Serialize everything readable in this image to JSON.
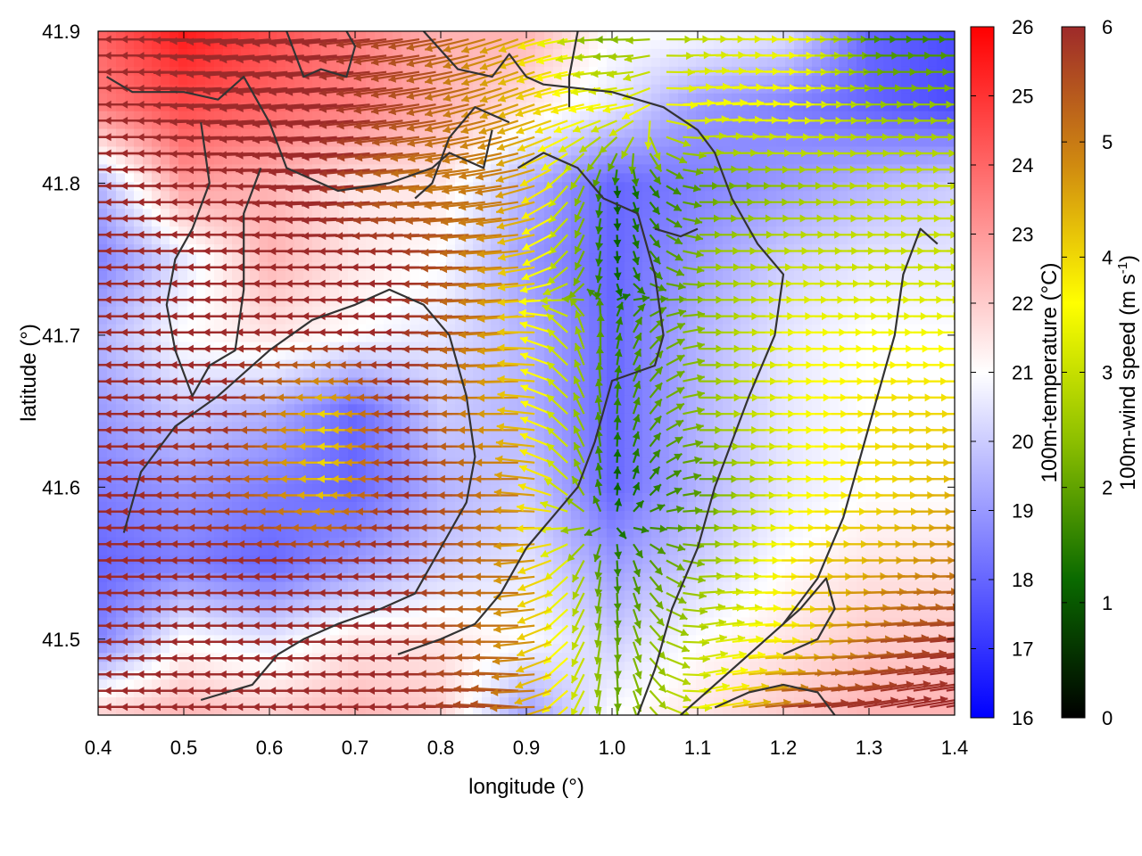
{
  "chart_data": {
    "type": "heatmap",
    "title": "",
    "xlabel": "longitude (°)",
    "ylabel": "latitude (°)",
    "xlim": [
      0.4,
      1.4
    ],
    "ylim": [
      41.45,
      41.9
    ],
    "x_ticks": [
      "0.4",
      "0.5",
      "0.6",
      "0.7",
      "0.8",
      "0.9",
      "1.0",
      "1.1",
      "1.2",
      "1.3",
      "1.4"
    ],
    "y_ticks": [
      "41.5",
      "41.6",
      "41.7",
      "41.8",
      "41.9"
    ],
    "grid": false,
    "temperature_colorbar": {
      "label": "100m-temperature (°C)",
      "min": 16,
      "max": 26,
      "ticks": [
        "16",
        "17",
        "18",
        "19",
        "20",
        "21",
        "22",
        "23",
        "24",
        "25",
        "26"
      ],
      "colors": [
        "#0000ff",
        "#ffffff",
        "#ff0000"
      ]
    },
    "wind_colorbar": {
      "label": "100m-wind speed (m s-1)",
      "label_base": "100m-wind speed (m s",
      "label_sup": "-1",
      "label_end": ")",
      "min": 0,
      "max": 6,
      "ticks": [
        "0",
        "1",
        "2",
        "3",
        "4",
        "5",
        "6"
      ],
      "colors": [
        "#000000",
        "#0a6a00",
        "#8cbf00",
        "#ffff00",
        "#d08a10",
        "#9e2a2a"
      ]
    },
    "temperature_field": {
      "lon": [
        0.4,
        0.5,
        0.6,
        0.7,
        0.8,
        0.9,
        1.0,
        1.1,
        1.2,
        1.3,
        1.4
      ],
      "lat": [
        41.9,
        41.85,
        41.8,
        41.75,
        41.7,
        41.65,
        41.6,
        41.55,
        41.5,
        41.45
      ],
      "values": [
        [
          24.0,
          25.5,
          24.5,
          23.5,
          22.5,
          22.5,
          21.0,
          21.0,
          20.5,
          18.0,
          17.5
        ],
        [
          23.5,
          24.5,
          24.0,
          23.5,
          22.5,
          21.5,
          20.5,
          19.0,
          18.5,
          18.0,
          17.5
        ],
        [
          19.5,
          23.0,
          22.5,
          21.5,
          21.5,
          19.5,
          18.0,
          18.5,
          19.0,
          19.5,
          20.0
        ],
        [
          18.5,
          20.5,
          22.5,
          21.5,
          21.0,
          19.0,
          18.0,
          19.0,
          20.0,
          20.5,
          20.5
        ],
        [
          19.5,
          21.0,
          21.5,
          21.0,
          20.5,
          19.5,
          18.0,
          19.5,
          20.5,
          21.0,
          21.0
        ],
        [
          19.0,
          20.0,
          19.5,
          18.0,
          20.0,
          19.5,
          18.0,
          19.5,
          20.5,
          21.0,
          21.0
        ],
        [
          18.5,
          19.0,
          18.5,
          18.0,
          19.5,
          20.0,
          18.0,
          19.5,
          20.5,
          21.0,
          21.0
        ],
        [
          18.0,
          18.5,
          18.0,
          19.0,
          20.0,
          20.5,
          19.0,
          20.0,
          21.0,
          21.5,
          21.5
        ],
        [
          18.5,
          21.0,
          20.5,
          21.5,
          21.5,
          21.0,
          20.0,
          21.0,
          21.5,
          22.0,
          22.0
        ],
        [
          22.0,
          22.5,
          22.0,
          22.5,
          22.0,
          19.0,
          21.0,
          21.5,
          22.0,
          22.5,
          22.5
        ]
      ]
    },
    "wind_field": {
      "lon": [
        0.4,
        0.5,
        0.6,
        0.7,
        0.8,
        0.9,
        1.0,
        1.1,
        1.2,
        1.3,
        1.4
      ],
      "lat": [
        41.9,
        41.85,
        41.8,
        41.75,
        41.7,
        41.65,
        41.6,
        41.55,
        41.5,
        41.45
      ],
      "speed": [
        [
          6.0,
          6.0,
          6.0,
          6.0,
          5.5,
          4.5,
          2.0,
          3.0,
          3.5,
          1.5,
          1.5
        ],
        [
          6.0,
          6.0,
          6.0,
          6.0,
          5.5,
          4.5,
          3.5,
          3.5,
          3.5,
          2.5,
          2.5
        ],
        [
          6.0,
          6.0,
          6.0,
          6.0,
          5.0,
          5.0,
          1.0,
          2.0,
          2.5,
          3.0,
          3.0
        ],
        [
          6.0,
          6.0,
          6.0,
          6.0,
          6.0,
          4.5,
          1.0,
          2.5,
          3.0,
          3.0,
          3.0
        ],
        [
          6.0,
          6.0,
          6.0,
          6.0,
          6.0,
          4.5,
          1.5,
          2.5,
          3.5,
          3.5,
          3.5
        ],
        [
          6.0,
          6.0,
          6.0,
          4.0,
          6.0,
          4.5,
          1.5,
          2.5,
          3.5,
          4.0,
          4.0
        ],
        [
          6.0,
          6.0,
          5.5,
          4.0,
          6.0,
          5.0,
          1.0,
          2.0,
          3.5,
          4.0,
          4.5
        ],
        [
          6.0,
          6.0,
          6.0,
          6.0,
          6.0,
          5.0,
          1.5,
          2.5,
          4.0,
          4.5,
          5.0
        ],
        [
          6.0,
          6.0,
          6.0,
          6.0,
          6.0,
          5.0,
          2.0,
          3.0,
          4.0,
          5.5,
          6.0
        ],
        [
          6.0,
          6.0,
          6.0,
          6.0,
          6.0,
          5.5,
          2.0,
          3.5,
          6.0,
          6.0,
          6.0
        ]
      ],
      "direction_deg_math": [
        [
          180,
          180,
          185,
          185,
          190,
          200,
          180,
          0,
          0,
          0,
          0
        ],
        [
          180,
          180,
          185,
          185,
          190,
          200,
          190,
          5,
          0,
          0,
          0
        ],
        [
          180,
          180,
          180,
          185,
          185,
          190,
          270,
          0,
          0,
          0,
          0
        ],
        [
          180,
          180,
          180,
          180,
          180,
          185,
          270,
          0,
          0,
          0,
          0
        ],
        [
          180,
          180,
          180,
          180,
          180,
          185,
          80,
          0,
          0,
          0,
          0
        ],
        [
          180,
          180,
          180,
          180,
          180,
          180,
          90,
          0,
          0,
          0,
          0
        ],
        [
          180,
          180,
          180,
          180,
          180,
          180,
          90,
          0,
          0,
          0,
          0
        ],
        [
          180,
          180,
          180,
          180,
          180,
          180,
          270,
          0,
          0,
          0,
          0
        ],
        [
          180,
          180,
          180,
          180,
          180,
          180,
          270,
          10,
          0,
          5,
          5
        ],
        [
          180,
          180,
          180,
          180,
          180,
          175,
          270,
          10,
          5,
          10,
          10
        ]
      ]
    },
    "contours": [
      [
        [
          0.41,
          41.87
        ],
        [
          0.44,
          41.86
        ],
        [
          0.5,
          41.86
        ],
        [
          0.54,
          41.855
        ],
        [
          0.57,
          41.87
        ],
        [
          0.6,
          41.84
        ],
        [
          0.62,
          41.81
        ],
        [
          0.68,
          41.795
        ],
        [
          0.74,
          41.8
        ],
        [
          0.79,
          41.81
        ],
        [
          0.81,
          41.82
        ],
        [
          0.85,
          41.81
        ],
        [
          0.86,
          41.835
        ]
      ],
      [
        [
          0.62,
          41.9
        ],
        [
          0.64,
          41.87
        ],
        [
          0.66,
          41.875
        ],
        [
          0.69,
          41.87
        ],
        [
          0.7,
          41.89
        ],
        [
          0.69,
          41.9
        ]
      ],
      [
        [
          0.78,
          41.9
        ],
        [
          0.82,
          41.875
        ],
        [
          0.86,
          41.87
        ],
        [
          0.88,
          41.885
        ],
        [
          0.9,
          41.87
        ],
        [
          0.92,
          41.865
        ],
        [
          1.0,
          41.86
        ],
        [
          1.06,
          41.85
        ],
        [
          1.1,
          41.835
        ],
        [
          1.12,
          41.82
        ],
        [
          1.14,
          41.79
        ],
        [
          1.17,
          41.76
        ],
        [
          1.2,
          41.74
        ],
        [
          1.19,
          41.7
        ],
        [
          1.16,
          41.66
        ],
        [
          1.12,
          41.6
        ],
        [
          1.1,
          41.56
        ],
        [
          1.07,
          41.52
        ],
        [
          1.05,
          41.48
        ],
        [
          1.03,
          41.45
        ]
      ],
      [
        [
          0.89,
          41.81
        ],
        [
          0.92,
          41.82
        ],
        [
          0.96,
          41.81
        ],
        [
          0.99,
          41.79
        ],
        [
          1.03,
          41.78
        ],
        [
          1.05,
          41.74
        ],
        [
          1.06,
          41.7
        ],
        [
          1.05,
          41.68
        ],
        [
          1.0,
          41.67
        ],
        [
          0.98,
          41.63
        ],
        [
          0.96,
          41.6
        ],
        [
          0.93,
          41.58
        ],
        [
          0.9,
          41.56
        ],
        [
          0.87,
          41.53
        ],
        [
          0.84,
          41.51
        ],
        [
          0.8,
          41.5
        ],
        [
          0.75,
          41.49
        ]
      ],
      [
        [
          0.88,
          41.84
        ],
        [
          0.84,
          41.85
        ],
        [
          0.81,
          41.83
        ],
        [
          0.79,
          41.8
        ],
        [
          0.77,
          41.79
        ]
      ],
      [
        [
          0.52,
          41.84
        ],
        [
          0.53,
          41.8
        ],
        [
          0.51,
          41.77
        ],
        [
          0.49,
          41.75
        ],
        [
          0.48,
          41.72
        ],
        [
          0.49,
          41.69
        ],
        [
          0.51,
          41.66
        ],
        [
          0.53,
          41.68
        ],
        [
          0.56,
          41.69
        ],
        [
          0.57,
          41.73
        ],
        [
          0.57,
          41.78
        ],
        [
          0.59,
          41.81
        ]
      ],
      [
        [
          0.43,
          41.57
        ],
        [
          0.45,
          41.61
        ],
        [
          0.49,
          41.64
        ],
        [
          0.54,
          41.66
        ],
        [
          0.6,
          41.69
        ],
        [
          0.65,
          41.71
        ],
        [
          0.7,
          41.72
        ],
        [
          0.74,
          41.73
        ],
        [
          0.78,
          41.72
        ],
        [
          0.81,
          41.7
        ],
        [
          0.83,
          41.66
        ],
        [
          0.84,
          41.62
        ],
        [
          0.83,
          41.59
        ],
        [
          0.8,
          41.56
        ],
        [
          0.77,
          41.53
        ],
        [
          0.73,
          41.52
        ],
        [
          0.68,
          41.51
        ],
        [
          0.64,
          41.5
        ],
        [
          0.61,
          41.49
        ],
        [
          0.58,
          41.47
        ],
        [
          0.52,
          41.46
        ]
      ],
      [
        [
          1.08,
          41.45
        ],
        [
          1.14,
          41.48
        ],
        [
          1.2,
          41.51
        ],
        [
          1.24,
          41.54
        ],
        [
          1.27,
          41.58
        ],
        [
          1.29,
          41.62
        ],
        [
          1.31,
          41.66
        ],
        [
          1.33,
          41.7
        ],
        [
          1.34,
          41.74
        ],
        [
          1.36,
          41.77
        ],
        [
          1.38,
          41.76
        ]
      ],
      [
        [
          1.2,
          41.49
        ],
        [
          1.24,
          41.5
        ],
        [
          1.26,
          41.52
        ],
        [
          1.25,
          41.54
        ],
        [
          1.22,
          41.52
        ],
        [
          1.2,
          41.51
        ]
      ],
      [
        [
          1.12,
          41.455
        ],
        [
          1.16,
          41.465
        ],
        [
          1.2,
          41.47
        ],
        [
          1.24,
          41.465
        ],
        [
          1.26,
          41.45
        ]
      ],
      [
        [
          1.05,
          41.77
        ],
        [
          1.08,
          41.765
        ],
        [
          1.1,
          41.77
        ]
      ],
      [
        [
          0.95,
          41.85
        ],
        [
          0.95,
          41.87
        ],
        [
          0.96,
          41.9
        ]
      ]
    ]
  }
}
